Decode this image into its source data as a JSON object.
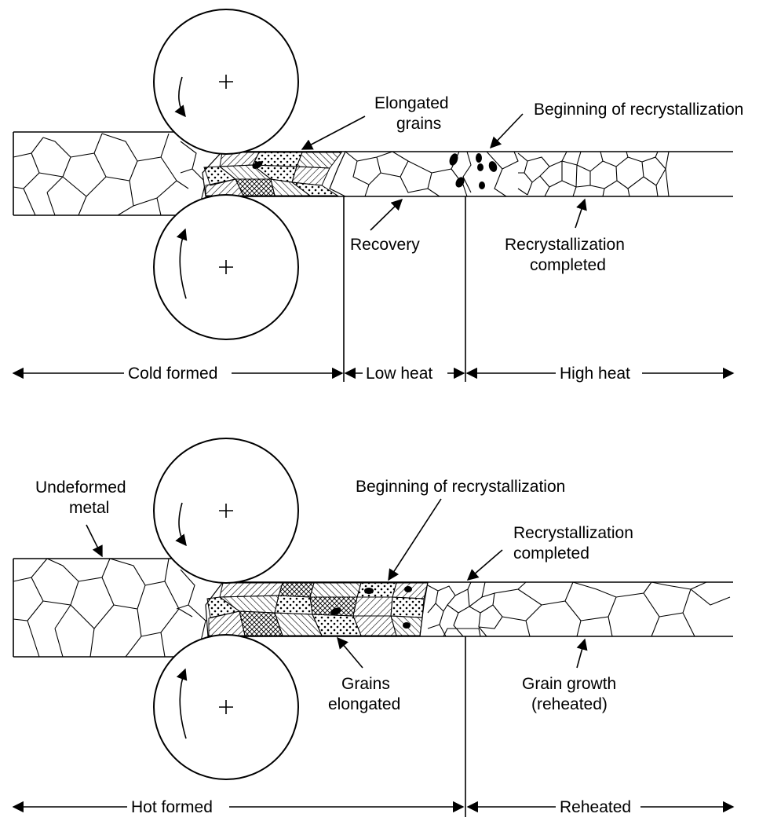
{
  "top_panel": {
    "labels": {
      "elongated_grains_1": "Elongated",
      "elongated_grains_2": "grains",
      "beginning_recryst": "Beginning of recrystallization",
      "recovery": "Recovery",
      "recryst_completed_1": "Recrystallization",
      "recryst_completed_2": "completed"
    },
    "zones": {
      "cold_formed": "Cold formed",
      "low_heat": "Low heat",
      "high_heat": "High heat"
    }
  },
  "bottom_panel": {
    "labels": {
      "undeformed_1": "Undeformed",
      "undeformed_2": "metal",
      "beginning_recryst": "Beginning of recrystallization",
      "recryst_completed_1": "Recrystallization",
      "recryst_completed_2": "completed",
      "grains_elongated_1": "Grains",
      "grains_elongated_2": "elongated",
      "grain_growth_1": "Grain growth",
      "grain_growth_2": "(reheated)"
    },
    "zones": {
      "hot_formed": "Hot formed",
      "reheated": "Reheated"
    }
  },
  "colors": {
    "ink": "#000000",
    "background": "#ffffff"
  }
}
